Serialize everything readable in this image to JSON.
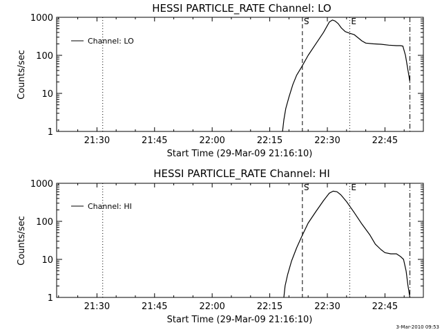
{
  "timestamp": "3-Mar-2010 09:53",
  "chart_data": [
    {
      "type": "line",
      "title": "HESSI PARTICLE_RATE Channel: LO",
      "xlabel": "Start Time (29-Mar-09 21:16:10)",
      "ylabel": "Counts/sec",
      "yscale": "log",
      "ylim": [
        1,
        1000
      ],
      "xlim": [
        "21:19:30",
        "22:55:00"
      ],
      "x_ticks": [
        "21:30",
        "21:45",
        "22:00",
        "22:15",
        "22:30",
        "22:45"
      ],
      "y_ticks": [
        "1",
        "10",
        "100",
        "1000"
      ],
      "legend": {
        "label": "Channel: LO",
        "position": "top-left"
      },
      "markers": [
        {
          "time": "21:31:30",
          "style": "dotted",
          "label": ""
        },
        {
          "time": "22:23:30",
          "style": "dashed",
          "label": "S"
        },
        {
          "time": "22:35:50",
          "style": "dotted",
          "label": "E"
        },
        {
          "time": "22:51:30",
          "style": "dashdot",
          "label": ""
        }
      ],
      "series": [
        {
          "name": "Channel: LO",
          "x": [
            "22:18:20",
            "22:18:40",
            "22:19:10",
            "22:20:00",
            "22:21:00",
            "22:22:00",
            "22:23:20",
            "22:25:00",
            "22:27:00",
            "22:29:00",
            "22:30:30",
            "22:31:20",
            "22:32:00",
            "22:32:50",
            "22:33:40",
            "22:34:40",
            "22:35:50",
            "22:37:00",
            "22:38:00",
            "22:39:00",
            "22:40:00",
            "22:42:00",
            "22:44:00",
            "22:46:00",
            "22:48:00",
            "22:49:00",
            "22:49:40",
            "22:50:20",
            "22:51:00",
            "22:51:30"
          ],
          "y": [
            1,
            2,
            4,
            8,
            17,
            30,
            50,
            100,
            200,
            400,
            750,
            850,
            800,
            680,
            520,
            420,
            380,
            350,
            290,
            240,
            210,
            200,
            195,
            185,
            180,
            180,
            175,
            100,
            40,
            20
          ]
        }
      ]
    },
    {
      "type": "line",
      "title": "HESSI PARTICLE_RATE Channel: HI",
      "xlabel": "Start Time (29-Mar-09 21:16:10)",
      "ylabel": "Counts/sec",
      "yscale": "log",
      "ylim": [
        1,
        1000
      ],
      "xlim": [
        "21:19:30",
        "22:55:00"
      ],
      "x_ticks": [
        "21:30",
        "21:45",
        "22:00",
        "22:15",
        "22:30",
        "22:45"
      ],
      "y_ticks": [
        "1",
        "10",
        "100",
        "1000"
      ],
      "legend": {
        "label": "Channel: HI",
        "position": "top-left"
      },
      "markers": [
        {
          "time": "21:31:30",
          "style": "dotted",
          "label": ""
        },
        {
          "time": "22:23:30",
          "style": "dashed",
          "label": "S"
        },
        {
          "time": "22:35:50",
          "style": "dotted",
          "label": "E"
        },
        {
          "time": "22:51:30",
          "style": "dashdot",
          "label": ""
        }
      ],
      "series": [
        {
          "name": "Channel: HI",
          "x": [
            "22:18:40",
            "22:19:00",
            "22:19:40",
            "22:20:40",
            "22:22:00",
            "22:23:20",
            "22:25:00",
            "22:27:00",
            "22:29:00",
            "22:30:30",
            "22:31:30",
            "22:32:30",
            "22:33:30",
            "22:35:00",
            "22:37:00",
            "22:39:00",
            "22:41:00",
            "22:42:30",
            "22:44:00",
            "22:45:00",
            "22:46:30",
            "22:48:00",
            "22:49:00",
            "22:49:50",
            "22:50:30",
            "22:51:00",
            "22:51:30"
          ],
          "y": [
            1,
            2,
            4,
            9,
            20,
            40,
            90,
            180,
            350,
            550,
            620,
            600,
            500,
            330,
            170,
            85,
            45,
            25,
            18,
            15,
            14,
            14,
            12,
            10,
            5,
            2,
            1
          ]
        }
      ]
    }
  ]
}
